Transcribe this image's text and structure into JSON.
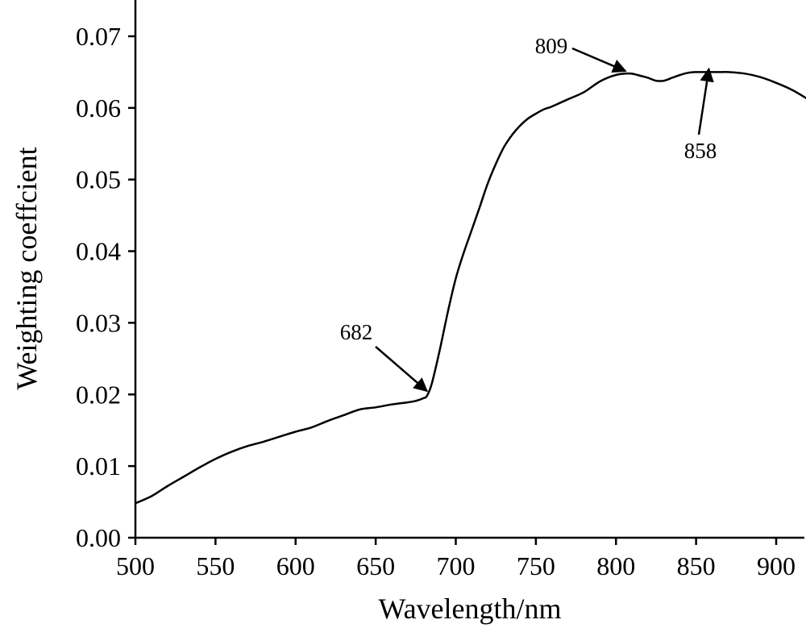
{
  "chart_data": {
    "type": "line",
    "xlabel": "Wavelength/nm",
    "ylabel": "Weighting coeffcient",
    "xlim": [
      500,
      920
    ],
    "ylim": [
      0.0,
      0.075
    ],
    "x_ticks": [
      500,
      550,
      600,
      650,
      700,
      750,
      800,
      850,
      900
    ],
    "x_tick_labels": [
      "500",
      "550",
      "600",
      "650",
      "700",
      "750",
      "800",
      "850",
      "900"
    ],
    "y_ticks": [
      0.0,
      0.01,
      0.02,
      0.03,
      0.04,
      0.05,
      0.06,
      0.07
    ],
    "y_tick_labels": [
      "0.00",
      "0.01",
      "0.02",
      "0.03",
      "0.04",
      "0.05",
      "0.06",
      "0.07"
    ],
    "grid": false,
    "series": [
      {
        "x": [
          500,
          510,
          520,
          530,
          540,
          550,
          560,
          570,
          580,
          590,
          600,
          610,
          620,
          630,
          640,
          650,
          660,
          670,
          675,
          680,
          682,
          685,
          690,
          695,
          700,
          705,
          710,
          715,
          720,
          725,
          730,
          735,
          740,
          745,
          750,
          755,
          760,
          770,
          780,
          790,
          800,
          809,
          815,
          820,
          825,
          830,
          835,
          840,
          845,
          850,
          858,
          865,
          870,
          880,
          890,
          900,
          910,
          920
        ],
        "y": [
          0.0048,
          0.0058,
          0.0072,
          0.0085,
          0.0098,
          0.011,
          0.012,
          0.0128,
          0.0134,
          0.0141,
          0.0148,
          0.0154,
          0.0163,
          0.0171,
          0.0179,
          0.0182,
          0.0186,
          0.0189,
          0.0191,
          0.0195,
          0.0198,
          0.0215,
          0.0262,
          0.0315,
          0.0362,
          0.0398,
          0.043,
          0.0462,
          0.0495,
          0.0522,
          0.0545,
          0.0562,
          0.0575,
          0.0585,
          0.0592,
          0.0598,
          0.0602,
          0.0612,
          0.0622,
          0.0637,
          0.0646,
          0.0648,
          0.0645,
          0.0642,
          0.0638,
          0.0638,
          0.0642,
          0.0646,
          0.0649,
          0.065,
          0.065,
          0.065,
          0.065,
          0.0648,
          0.0643,
          0.0635,
          0.0625,
          0.0612
        ]
      }
    ],
    "annotations": [
      {
        "text": "682",
        "x": 682,
        "y": 0.0198
      },
      {
        "text": "809",
        "x": 809,
        "y": 0.0648
      },
      {
        "text": "858",
        "x": 858,
        "y": 0.065
      }
    ],
    "line_color": "#000000"
  }
}
